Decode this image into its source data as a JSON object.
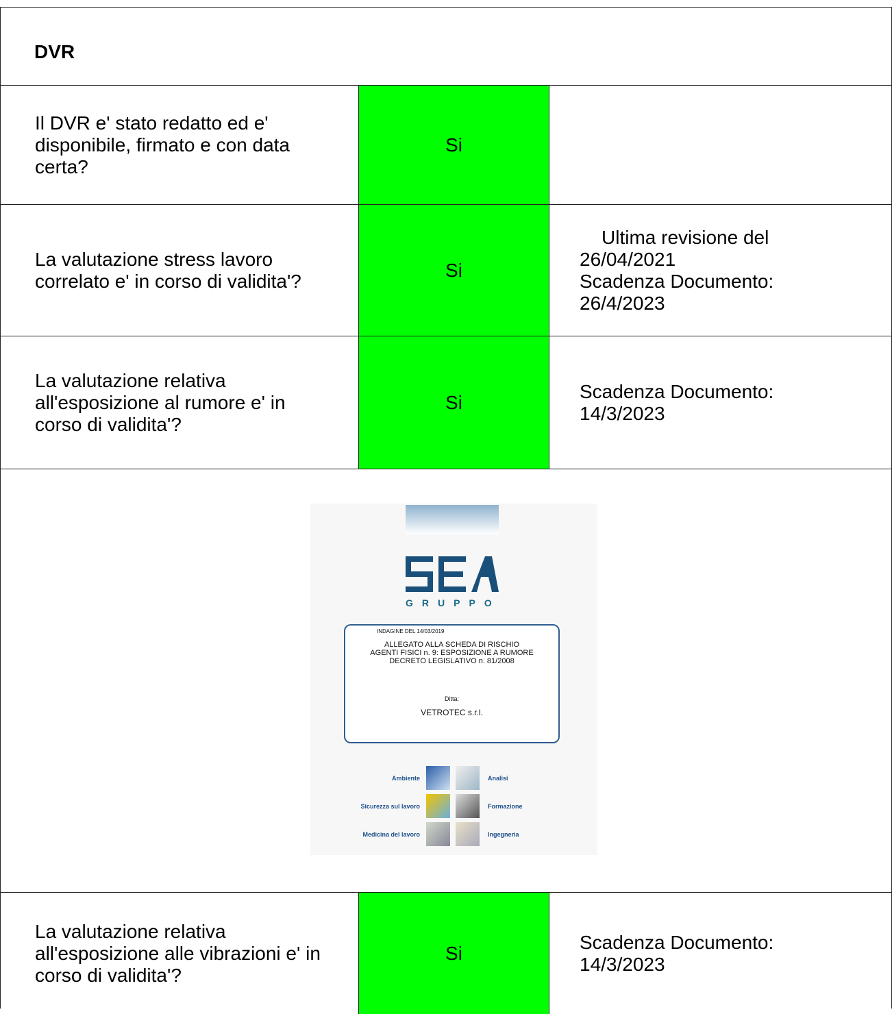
{
  "header": {
    "title": "DVR"
  },
  "table": {
    "rows": [
      {
        "question": "Il DVR e' stato redatto ed e' disponibile, firmato e con data certa?",
        "answer": "Si",
        "notes": []
      },
      {
        "question": "La valutazione stress lavoro correlato e' in corso di validita'?",
        "answer": "Si",
        "notes": [
          "Ultima revisione del",
          "26/04/2021",
          "Scadenza Documento:",
          "26/4/2023"
        ]
      },
      {
        "question": "La valutazione relativa all'esposizione al rumore e' in corso di validita'?",
        "answer": "Si",
        "notes": [
          "Scadenza Documento:",
          "14/3/2023"
        ]
      },
      {
        "question": "La valutazione relativa all'esposizione alle vibrazioni e' in corso di validita'?",
        "answer": "Si",
        "notes": [
          "Scadenza Documento:",
          "14/3/2023"
        ]
      }
    ]
  },
  "image": {
    "brand": "GRUPPO",
    "survey": "INDAGINE DEL 14/03/2019",
    "heading": [
      "ALLEGATO ALLA SCHEDA DI RISCHIO",
      "AGENTI FISICI n. 9: ESPOSIZIONE A RUMORE",
      "DECRETO LEGISLATIVO n. 81/2008"
    ],
    "company_label": "Ditta:",
    "company": "VETROTEC s.r.l.",
    "services": [
      "Ambiente",
      "Analisi",
      "Sicurezza sul lavoro",
      "Formazione",
      "Medicina del lavoro",
      "Ingegneria"
    ]
  }
}
